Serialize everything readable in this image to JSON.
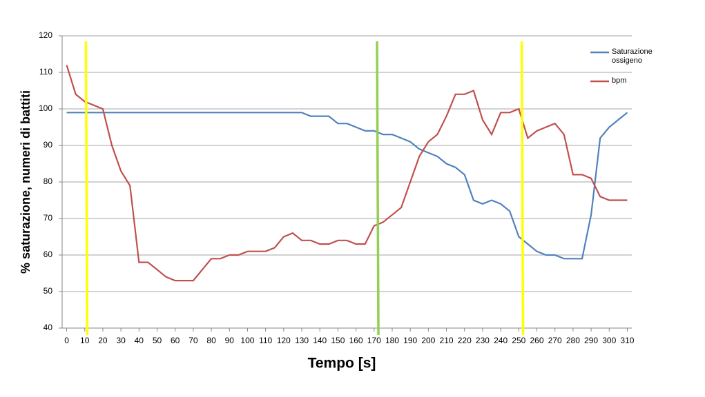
{
  "chart_data": {
    "type": "line",
    "x_label": "Tempo [s]",
    "y_label": "% saturazione, numeri di battiti",
    "x": [
      0,
      5,
      10,
      15,
      20,
      25,
      30,
      35,
      40,
      45,
      50,
      55,
      60,
      65,
      70,
      75,
      80,
      85,
      90,
      95,
      100,
      105,
      110,
      115,
      120,
      125,
      130,
      135,
      140,
      145,
      150,
      155,
      160,
      165,
      170,
      175,
      180,
      185,
      190,
      195,
      200,
      205,
      210,
      215,
      220,
      225,
      230,
      235,
      240,
      245,
      250,
      255,
      260,
      265,
      270,
      275,
      280,
      285,
      290,
      295,
      300,
      305,
      310
    ],
    "series": [
      {
        "name": "Saturazione ossigeno",
        "color": "#4f81bd",
        "values": [
          99,
          99,
          99,
          99,
          99,
          99,
          99,
          99,
          99,
          99,
          99,
          99,
          99,
          99,
          99,
          99,
          99,
          99,
          99,
          99,
          99,
          99,
          99,
          99,
          99,
          99,
          99,
          98,
          98,
          98,
          96,
          96,
          95,
          94,
          94,
          93,
          93,
          92,
          91,
          89,
          88,
          87,
          85,
          84,
          82,
          75,
          74,
          75,
          74,
          72,
          65,
          63,
          61,
          60,
          60,
          59,
          59,
          59,
          71,
          92,
          95,
          97,
          99
        ]
      },
      {
        "name": "bpm",
        "color": "#c0504d",
        "values": [
          112,
          104,
          102,
          101,
          100,
          90,
          83,
          79,
          58,
          58,
          56,
          54,
          53,
          53,
          53,
          56,
          59,
          59,
          60,
          60,
          61,
          61,
          61,
          62,
          65,
          66,
          64,
          64,
          63,
          63,
          64,
          64,
          63,
          63,
          68,
          69,
          71,
          73,
          80,
          87,
          91,
          93,
          98,
          104,
          104,
          105,
          97,
          93,
          99,
          99,
          100,
          92,
          94,
          95,
          96,
          93,
          82,
          82,
          81,
          76,
          75,
          75,
          75
        ]
      }
    ],
    "vlines": [
      {
        "x": 11,
        "color": "#ffff00"
      },
      {
        "x": 172,
        "color": "#92d050"
      },
      {
        "x": 252,
        "color": "#ffff00"
      }
    ],
    "xlim": [
      -2.5,
      312.5
    ],
    "xticks": [
      0,
      10,
      20,
      30,
      40,
      50,
      60,
      70,
      80,
      90,
      100,
      110,
      120,
      130,
      140,
      150,
      160,
      170,
      180,
      190,
      200,
      210,
      220,
      230,
      240,
      250,
      260,
      270,
      280,
      290,
      300,
      310
    ],
    "ylim": [
      40,
      120
    ],
    "yticks": [
      40,
      50,
      60,
      70,
      80,
      90,
      100,
      110,
      120
    ],
    "grid": true
  }
}
